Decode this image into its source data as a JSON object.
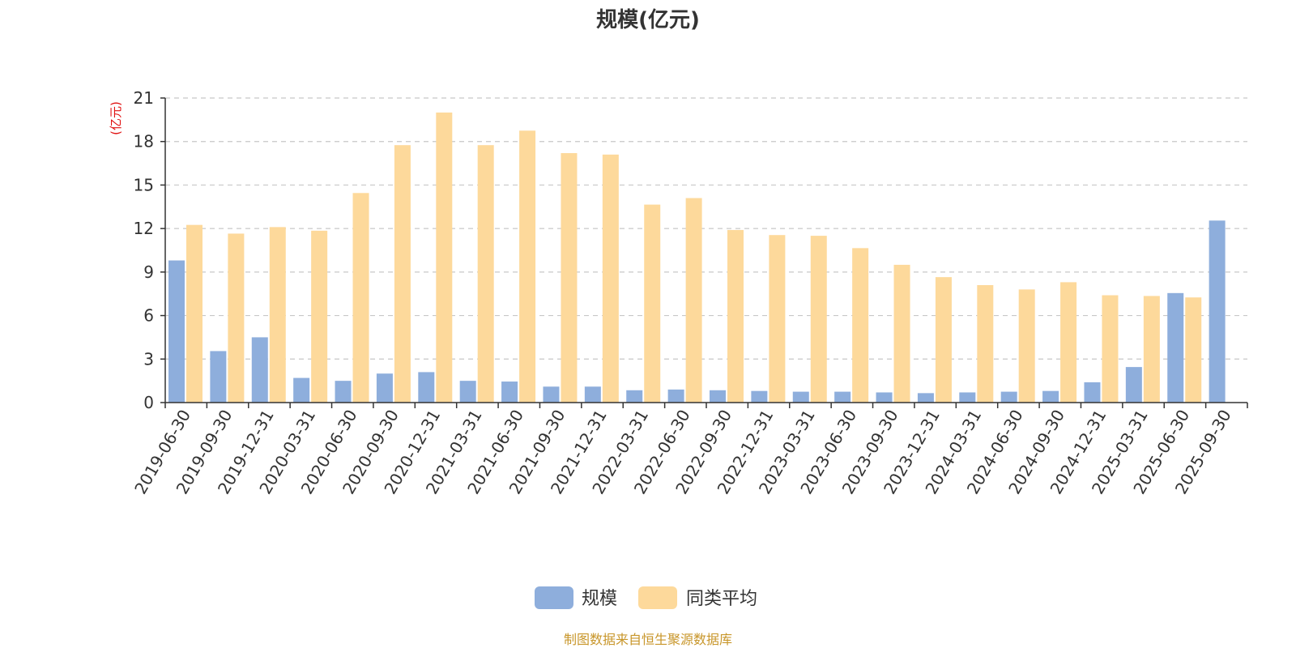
{
  "chart_data": {
    "type": "bar",
    "title": "规模(亿元)",
    "ylabel": "(亿元)",
    "xlabel": "",
    "ylim": [
      0,
      21
    ],
    "yticks": [
      0,
      3,
      6,
      9,
      12,
      15,
      18,
      21
    ],
    "grid": true,
    "legend_position": "bottom-center",
    "categories": [
      "2019-06-30",
      "2019-09-30",
      "2019-12-31",
      "2020-03-31",
      "2020-06-30",
      "2020-09-30",
      "2020-12-31",
      "2021-03-31",
      "2021-06-30",
      "2021-09-30",
      "2021-12-31",
      "2022-03-31",
      "2022-06-30",
      "2022-09-30",
      "2022-12-31",
      "2023-03-31",
      "2023-06-30",
      "2023-09-30",
      "2023-12-31",
      "2024-03-31",
      "2024-06-30",
      "2024-09-30",
      "2024-12-31",
      "2025-03-31",
      "2025-06-30",
      "2025-09-30"
    ],
    "series": [
      {
        "name": "规模",
        "color": "#8eaedc",
        "values": [
          9.8,
          3.55,
          4.5,
          1.7,
          1.5,
          2.0,
          2.1,
          1.5,
          1.45,
          1.1,
          1.1,
          0.85,
          0.9,
          0.85,
          0.8,
          0.75,
          0.75,
          0.7,
          0.65,
          0.7,
          0.75,
          0.8,
          1.4,
          2.45,
          7.55,
          12.55
        ]
      },
      {
        "name": "同类平均",
        "color": "#fdd99b",
        "values": [
          12.25,
          11.65,
          12.1,
          11.85,
          14.45,
          17.75,
          20.0,
          17.75,
          18.75,
          17.2,
          17.1,
          13.65,
          14.1,
          11.9,
          11.55,
          11.5,
          10.65,
          9.5,
          8.65,
          8.1,
          7.8,
          8.3,
          7.4,
          7.35,
          7.25,
          null
        ]
      }
    ]
  },
  "source_note": "制图数据来自恒生聚源数据库"
}
